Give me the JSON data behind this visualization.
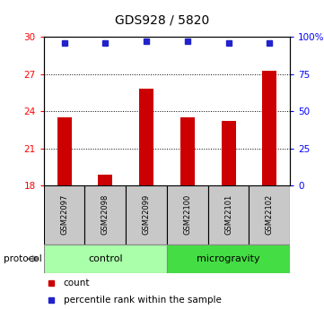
{
  "title": "GDS928 / 5820",
  "samples": [
    "GSM22097",
    "GSM22098",
    "GSM22099",
    "GSM22100",
    "GSM22101",
    "GSM22102"
  ],
  "counts": [
    23.5,
    18.9,
    25.8,
    23.5,
    23.2,
    27.3
  ],
  "percentile_ranks": [
    96,
    96,
    97,
    97,
    96,
    96
  ],
  "ylim_left": [
    18,
    30
  ],
  "yticks_left": [
    18,
    21,
    24,
    27,
    30
  ],
  "ylim_right": [
    0,
    100
  ],
  "yticks_right": [
    0,
    25,
    50,
    75,
    100
  ],
  "right_tick_labels": [
    "0",
    "25",
    "50",
    "75",
    "100%"
  ],
  "bar_color": "#cc0000",
  "dot_color": "#2222cc",
  "groups": [
    {
      "label": "control",
      "start": 0,
      "end": 3,
      "color": "#aaffaa"
    },
    {
      "label": "microgravity",
      "start": 3,
      "end": 6,
      "color": "#44dd44"
    }
  ],
  "protocol_label": "protocol",
  "legend_count_label": "count",
  "legend_percentile_label": "percentile rank within the sample",
  "dotted_yticks": [
    21,
    24,
    27
  ],
  "bar_width": 0.35
}
